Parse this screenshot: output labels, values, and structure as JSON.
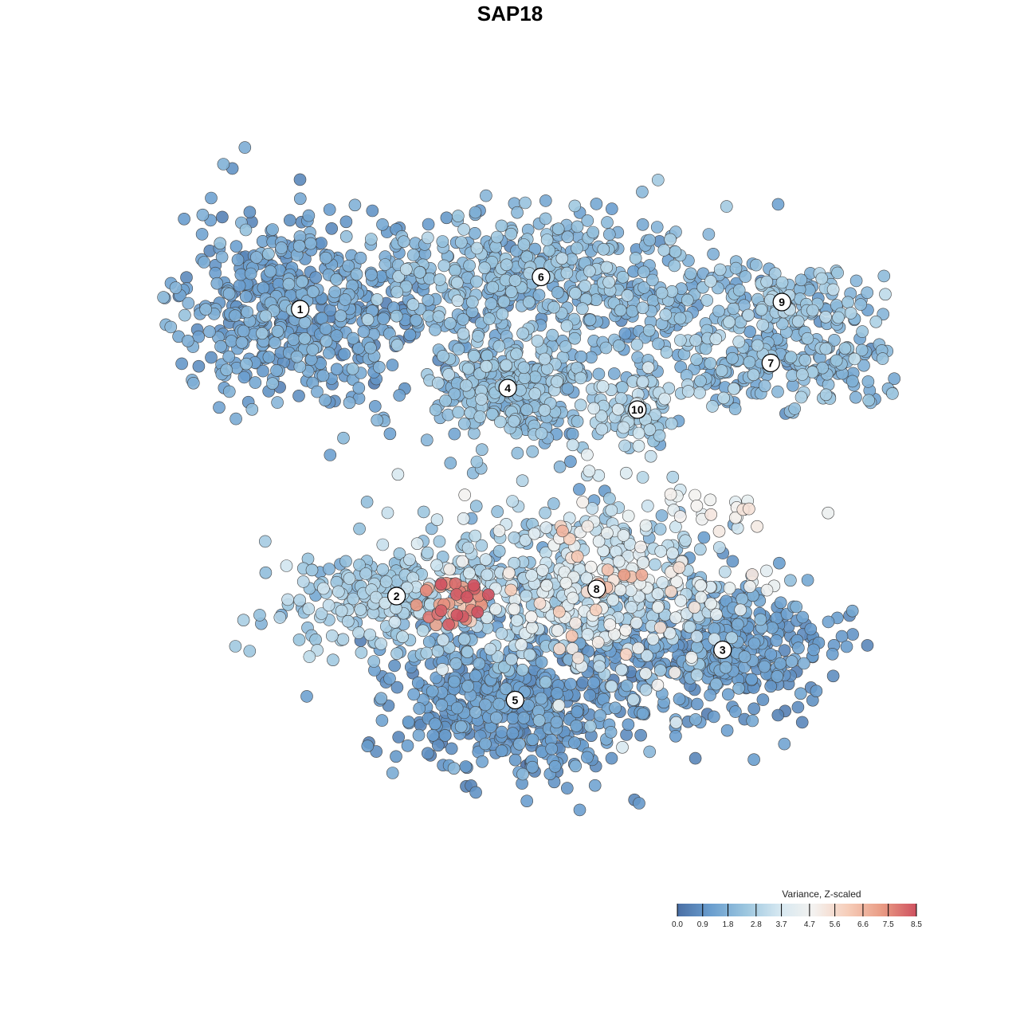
{
  "chart_data": {
    "type": "scatter",
    "title": "SAP18",
    "xlabel": "",
    "ylabel": "",
    "grid": false,
    "axes_visible": false,
    "legend_position": "bottom-right",
    "colorbar": {
      "title": "Variance, Z-scaled",
      "min": 0.0,
      "max": 8.5,
      "ticks": [
        "0.0",
        "0.9",
        "1.8",
        "2.8",
        "3.7",
        "4.7",
        "5.6",
        "6.6",
        "7.5",
        "8.5"
      ],
      "colors": [
        "#4a6fa5",
        "#6b9fcf",
        "#9cc6df",
        "#d6e8f1",
        "#f4f2f0",
        "#f6cdb9",
        "#e99b84",
        "#cf5260"
      ]
    },
    "clusters": [
      {
        "label": "1",
        "x": -6.2,
        "y": 5.6,
        "spread_x": 1.7,
        "spread_y": 1.4,
        "n": 520,
        "mean": 1.3,
        "sd": 0.45
      },
      {
        "label": "2",
        "x": -3.6,
        "y": -2.4,
        "spread_x": 1.6,
        "spread_y": 0.9,
        "n": 260,
        "mean": 2.5,
        "sd": 0.45
      },
      {
        "label": "3",
        "x": 5.2,
        "y": -3.9,
        "spread_x": 1.5,
        "spread_y": 1.0,
        "n": 380,
        "mean": 1.15,
        "sd": 0.35
      },
      {
        "label": "4",
        "x": -0.6,
        "y": 3.4,
        "spread_x": 1.1,
        "spread_y": 0.9,
        "n": 300,
        "mean": 2.0,
        "sd": 0.5
      },
      {
        "label": "5",
        "x": -0.4,
        "y": -5.3,
        "spread_x": 1.7,
        "spread_y": 1.1,
        "n": 520,
        "mean": 1.05,
        "sd": 0.35
      },
      {
        "label": "6",
        "x": 0.3,
        "y": 6.5,
        "spread_x": 2.5,
        "spread_y": 0.9,
        "n": 480,
        "mean": 1.9,
        "sd": 0.5
      },
      {
        "label": "7",
        "x": 6.5,
        "y": 4.1,
        "spread_x": 1.9,
        "spread_y": 0.6,
        "n": 240,
        "mean": 2.0,
        "sd": 0.5
      },
      {
        "label": "8",
        "x": 1.8,
        "y": -2.2,
        "spread_x": 1.8,
        "spread_y": 1.3,
        "n": 480,
        "mean": 3.2,
        "sd": 1.1
      },
      {
        "label": "9",
        "x": 6.8,
        "y": 5.8,
        "spread_x": 1.5,
        "spread_y": 0.5,
        "n": 140,
        "mean": 2.2,
        "sd": 0.5
      },
      {
        "label": "10",
        "x": 2.9,
        "y": 2.8,
        "spread_x": 0.6,
        "spread_y": 0.5,
        "n": 80,
        "mean": 2.7,
        "sd": 0.5
      }
    ],
    "highlight_groups": [
      {
        "name": "high-variance core",
        "x": -2.0,
        "y": -2.6,
        "spread_x": 0.45,
        "spread_y": 0.35,
        "n": 45,
        "mean": 7.2,
        "sd": 1.0
      },
      {
        "name": "elevated scatter",
        "x": 1.2,
        "y": -2.0,
        "spread_x": 1.0,
        "spread_y": 0.6,
        "n": 18,
        "mean": 6.3,
        "sd": 0.9
      },
      {
        "name": "tail",
        "x": 5.4,
        "y": 0.0,
        "spread_x": 0.9,
        "spread_y": 0.2,
        "n": 20,
        "mean": 4.6,
        "sd": 0.4
      }
    ],
    "x_range": [
      -10,
      10
    ],
    "y_range": [
      -10,
      10
    ]
  }
}
